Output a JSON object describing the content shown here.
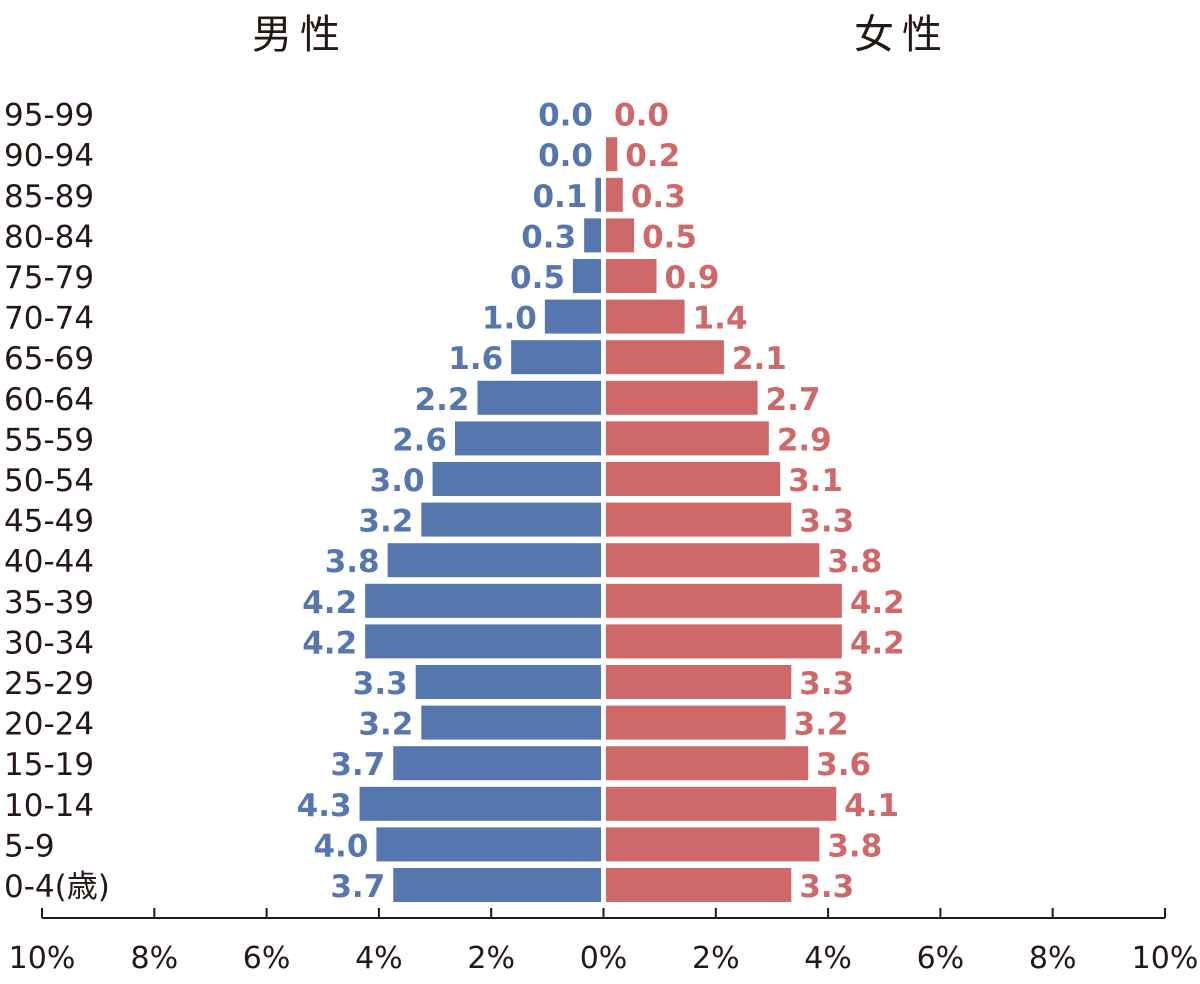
{
  "chart_data": {
    "type": "bar",
    "orientation": "horizontal-pyramid",
    "categories": [
      "0-4(歳)",
      "5-9",
      "10-14",
      "15-19",
      "20-24",
      "25-29",
      "30-34",
      "35-39",
      "40-44",
      "45-49",
      "50-54",
      "55-59",
      "60-64",
      "65-69",
      "70-74",
      "75-79",
      "80-84",
      "85-89",
      "90-94",
      "95-99"
    ],
    "series": [
      {
        "name": "男性",
        "color": "#5677ae",
        "values": [
          3.7,
          4.0,
          4.3,
          3.7,
          3.2,
          3.3,
          4.2,
          4.2,
          3.8,
          3.2,
          3.0,
          2.6,
          2.2,
          1.6,
          1.0,
          0.5,
          0.3,
          0.1,
          0.0,
          0.0
        ]
      },
      {
        "name": "女性",
        "color": "#cf6969",
        "values": [
          3.3,
          3.8,
          4.1,
          3.6,
          3.2,
          3.3,
          4.2,
          4.2,
          3.8,
          3.3,
          3.1,
          2.9,
          2.7,
          2.1,
          1.4,
          0.9,
          0.5,
          0.3,
          0.2,
          0.0
        ]
      }
    ],
    "xlim": [
      -10,
      10
    ],
    "xticks": [
      "10%",
      "8%",
      "6%",
      "4%",
      "2%",
      "0%",
      "2%",
      "4%",
      "6%",
      "8%",
      "10%"
    ],
    "grid": false,
    "title": "",
    "xlabel": "",
    "ylabel": ""
  }
}
